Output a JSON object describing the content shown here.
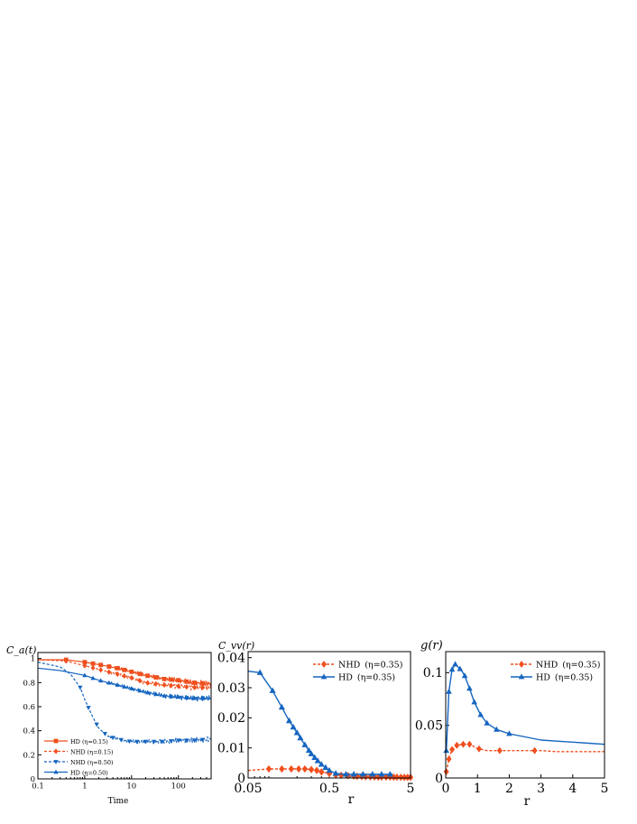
{
  "chart_data": [
    {
      "type": "line",
      "ylabel": "C_a(t)",
      "xlabel": "Time",
      "x_scale": "log",
      "xlim": [
        0.1,
        500
      ],
      "ylim": [
        0,
        1.05
      ],
      "xticks": [
        0.1,
        1,
        10,
        100
      ],
      "xtick_labels": [
        "0.1",
        "1",
        "10",
        "100"
      ],
      "yticks": [
        0,
        0.2,
        0.4,
        0.6,
        0.8,
        1
      ],
      "ytick_labels": [
        "0",
        "0.2",
        "0.4",
        "0.6",
        "0.8",
        "1"
      ],
      "legend": "bottom-left",
      "series": [
        {
          "name": "HD (η=0.15)",
          "color": "#f04f1e",
          "dash": false,
          "marker": "square",
          "x": [
            0.1,
            0.4,
            1,
            2,
            5,
            10,
            20,
            50,
            100,
            200,
            500
          ],
          "y": [
            0.99,
            0.99,
            0.97,
            0.95,
            0.92,
            0.89,
            0.86,
            0.83,
            0.82,
            0.8,
            0.79
          ],
          "marker_x": [
            0.4,
            1,
            1.5,
            2.2,
            3.3,
            5,
            7,
            10,
            15,
            22,
            33,
            50,
            70,
            100,
            150,
            220,
            330
          ]
        },
        {
          "name": "NHD (η=0.15)",
          "color": "#f04f1e",
          "dash": true,
          "marker": "diamond",
          "x": [
            0.1,
            0.4,
            1,
            2,
            5,
            10,
            20,
            50,
            100,
            200,
            500
          ],
          "y": [
            0.99,
            0.98,
            0.94,
            0.91,
            0.87,
            0.84,
            0.8,
            0.78,
            0.77,
            0.76,
            0.76
          ],
          "marker_x": [
            0.4,
            1,
            1.5,
            2.2,
            3.3,
            5,
            7,
            10,
            15,
            22,
            33,
            50,
            70,
            100,
            150,
            220,
            330
          ]
        },
        {
          "name": "NHD (η=0.50)",
          "color": "#1565c0",
          "dash": true,
          "marker": "triangle-down",
          "x": [
            0.1,
            0.3,
            0.5,
            0.8,
            1,
            1.5,
            2,
            3,
            5,
            10,
            20,
            50,
            100,
            200,
            500
          ],
          "y": [
            0.97,
            0.93,
            0.87,
            0.76,
            0.66,
            0.51,
            0.42,
            0.36,
            0.33,
            0.31,
            0.31,
            0.31,
            0.32,
            0.32,
            0.33
          ],
          "marker_x": [
            0.8,
            1.2,
            1.8,
            2.7,
            4,
            6,
            9,
            13,
            20,
            30,
            45,
            70,
            100,
            150,
            220,
            330
          ]
        },
        {
          "name": "HD (η=0.50)",
          "color": "#1565c0",
          "dash": false,
          "marker": "triangle",
          "x": [
            0.1,
            0.3,
            1,
            2,
            5,
            10,
            20,
            50,
            100,
            200,
            500
          ],
          "y": [
            0.92,
            0.9,
            0.86,
            0.82,
            0.78,
            0.75,
            0.72,
            0.69,
            0.68,
            0.67,
            0.67
          ],
          "marker_x": [
            1,
            1.5,
            2.2,
            3.3,
            5,
            7,
            10,
            15,
            22,
            33,
            50,
            70,
            100,
            150,
            220,
            330
          ]
        }
      ]
    },
    {
      "type": "line",
      "ylabel": "C_vv(r)",
      "xlabel": "r",
      "x_scale": "log",
      "xlim": [
        0.05,
        5
      ],
      "ylim": [
        0,
        0.042
      ],
      "xticks": [
        0.05,
        0.5,
        5
      ],
      "xtick_labels": [
        "0.05",
        "0.5",
        "5"
      ],
      "yticks": [
        0,
        0.01,
        0.02,
        0.03,
        0.04
      ],
      "ytick_labels": [
        "0",
        "0.01",
        "0.02",
        "0.03",
        "0.04"
      ],
      "legend": "top-right",
      "series": [
        {
          "name": "NHD",
          "eta_label": "(η=0.35)",
          "color": "#f04f1e",
          "dash": true,
          "marker": "diamond",
          "x": [
            0.05,
            0.09,
            0.13,
            0.17,
            0.21,
            0.25,
            0.3,
            0.35,
            0.4,
            0.5,
            0.6,
            0.8,
            1,
            1.5,
            2,
            3,
            4,
            5
          ],
          "y": [
            0.0025,
            0.003,
            0.003,
            0.003,
            0.003,
            0.003,
            0.0028,
            0.0025,
            0.002,
            0.0015,
            0.001,
            0.0008,
            0.0006,
            0.0004,
            0.0003,
            0.0003,
            0.0002,
            0.0002
          ],
          "marker_x": [
            0.09,
            0.13,
            0.17,
            0.21,
            0.25,
            0.3,
            0.35,
            0.4,
            0.5,
            0.6,
            0.7,
            0.85,
            1,
            1.1,
            1.25,
            1.4,
            1.6,
            1.8,
            2,
            2.2,
            2.5,
            2.8,
            3.1,
            3.4,
            3.8,
            4.2,
            4.6,
            5
          ]
        },
        {
          "name": "HD",
          "eta_label": "(η=0.35)",
          "color": "#1565c0",
          "dash": false,
          "marker": "triangle",
          "x": [
            0.05,
            0.07,
            0.1,
            0.13,
            0.16,
            0.2,
            0.25,
            0.3,
            0.35,
            0.4,
            0.5,
            0.6,
            0.8,
            1,
            2,
            3
          ],
          "y": [
            0.0355,
            0.035,
            0.029,
            0.0235,
            0.019,
            0.015,
            0.011,
            0.008,
            0.006,
            0.0045,
            0.0025,
            0.0015,
            0.0012,
            0.0012,
            0.0012,
            0.0012
          ],
          "marker_x": [
            0.07,
            0.1,
            0.13,
            0.16,
            0.18,
            0.2,
            0.22,
            0.25,
            0.28,
            0.3,
            0.33,
            0.36,
            0.4,
            0.45,
            0.5,
            0.6,
            0.8,
            1,
            1.3,
            1.7,
            2.2,
            2.8
          ]
        }
      ]
    },
    {
      "type": "line",
      "ylabel": "g(r)",
      "xlabel": "r",
      "xlim": [
        0,
        5
      ],
      "ylim": [
        0,
        0.12
      ],
      "xticks": [
        0,
        1,
        2,
        3,
        4,
        5
      ],
      "xtick_labels": [
        "0",
        "1",
        "2",
        "3",
        "4",
        "5"
      ],
      "yticks": [
        0,
        0.05,
        0.1
      ],
      "ytick_labels": [
        "0",
        "0.05",
        "0.1"
      ],
      "legend": "top-right",
      "series": [
        {
          "name": "NHD",
          "eta_label": "(η=0.35)",
          "color": "#f04f1e",
          "dash": true,
          "marker": "diamond",
          "x": [
            0.02,
            0.1,
            0.2,
            0.35,
            0.55,
            0.75,
            1.0,
            1.3,
            1.6,
            2.0,
            2.5,
            3.0,
            3.5,
            4.0,
            4.5,
            5.0
          ],
          "y": [
            0.006,
            0.018,
            0.027,
            0.031,
            0.032,
            0.032,
            0.028,
            0.026,
            0.026,
            0.026,
            0.026,
            0.026,
            0.025,
            0.025,
            0.025,
            0.025
          ],
          "marker_x": [
            0.02,
            0.1,
            0.2,
            0.35,
            0.55,
            0.75,
            1.05,
            1.7,
            2.8
          ]
        },
        {
          "name": "HD",
          "eta_label": "(η=0.35)",
          "color": "#1565c0",
          "dash": false,
          "marker": "triangle",
          "x": [
            0.02,
            0.1,
            0.2,
            0.3,
            0.4,
            0.5,
            0.6,
            0.75,
            0.9,
            1.1,
            1.3,
            1.6,
            2.0,
            2.5,
            3.0,
            3.5,
            4.0,
            4.5,
            5.0
          ],
          "y": [
            0.026,
            0.082,
            0.103,
            0.108,
            0.105,
            0.102,
            0.097,
            0.085,
            0.072,
            0.06,
            0.052,
            0.046,
            0.042,
            0.039,
            0.036,
            0.035,
            0.034,
            0.033,
            0.032
          ],
          "marker_x": [
            0.02,
            0.1,
            0.2,
            0.3,
            0.45,
            0.6,
            0.75,
            0.9,
            1.1,
            1.3,
            1.6,
            2.0
          ]
        }
      ]
    }
  ]
}
